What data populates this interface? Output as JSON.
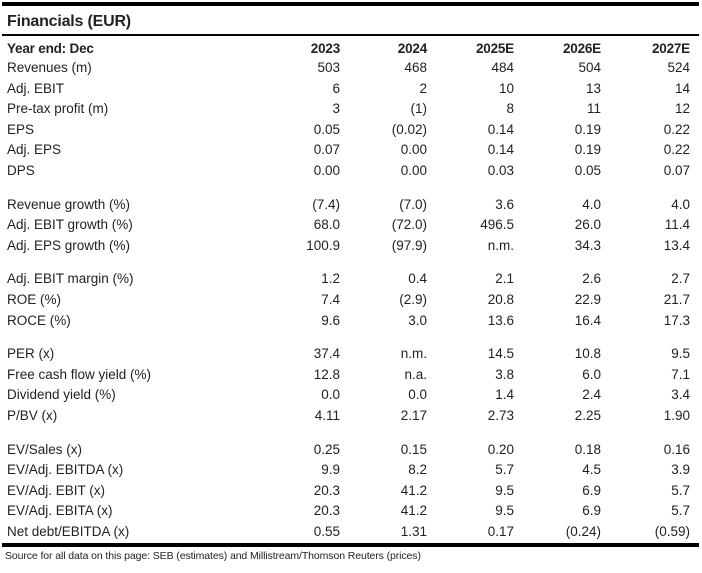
{
  "title": "Financials (EUR)",
  "table": {
    "header": {
      "label": "Year end: Dec",
      "columns": [
        "2023",
        "2024",
        "2025E",
        "2026E",
        "2027E"
      ]
    },
    "sections": [
      {
        "rows": [
          {
            "label": "Revenues (m)",
            "values": [
              "503",
              "468",
              "484",
              "504",
              "524"
            ]
          },
          {
            "label": "Adj. EBIT",
            "values": [
              "6",
              "2",
              "10",
              "13",
              "14"
            ]
          },
          {
            "label": "Pre-tax profit (m)",
            "values": [
              "3",
              "(1)",
              "8",
              "11",
              "12"
            ]
          },
          {
            "label": "EPS",
            "values": [
              "0.05",
              "(0.02)",
              "0.14",
              "0.19",
              "0.22"
            ]
          },
          {
            "label": "Adj. EPS",
            "values": [
              "0.07",
              "0.00",
              "0.14",
              "0.19",
              "0.22"
            ]
          },
          {
            "label": "DPS",
            "values": [
              "0.00",
              "0.00",
              "0.03",
              "0.05",
              "0.07"
            ]
          }
        ]
      },
      {
        "rows": [
          {
            "label": "Revenue growth (%)",
            "values": [
              "(7.4)",
              "(7.0)",
              "3.6",
              "4.0",
              "4.0"
            ]
          },
          {
            "label": "Adj. EBIT growth (%)",
            "values": [
              "68.0",
              "(72.0)",
              "496.5",
              "26.0",
              "11.4"
            ]
          },
          {
            "label": "Adj. EPS growth (%)",
            "values": [
              "100.9",
              "(97.9)",
              "n.m.",
              "34.3",
              "13.4"
            ]
          }
        ]
      },
      {
        "rows": [
          {
            "label": "Adj. EBIT margin (%)",
            "values": [
              "1.2",
              "0.4",
              "2.1",
              "2.6",
              "2.7"
            ]
          },
          {
            "label": "ROE (%)",
            "values": [
              "7.4",
              "(2.9)",
              "20.8",
              "22.9",
              "21.7"
            ]
          },
          {
            "label": "ROCE (%)",
            "values": [
              "9.6",
              "3.0",
              "13.6",
              "16.4",
              "17.3"
            ]
          }
        ]
      },
      {
        "rows": [
          {
            "label": "PER (x)",
            "values": [
              "37.4",
              "n.m.",
              "14.5",
              "10.8",
              "9.5"
            ]
          },
          {
            "label": "Free cash flow yield (%)",
            "values": [
              "12.8",
              "n.a.",
              "3.8",
              "6.0",
              "7.1"
            ]
          },
          {
            "label": "Dividend yield (%)",
            "values": [
              "0.0",
              "0.0",
              "1.4",
              "2.4",
              "3.4"
            ]
          },
          {
            "label": "P/BV (x)",
            "values": [
              "4.11",
              "2.17",
              "2.73",
              "2.25",
              "1.90"
            ]
          }
        ]
      },
      {
        "rows": [
          {
            "label": "EV/Sales (x)",
            "values": [
              "0.25",
              "0.15",
              "0.20",
              "0.18",
              "0.16"
            ]
          },
          {
            "label": "EV/Adj. EBITDA (x)",
            "values": [
              "9.9",
              "8.2",
              "5.7",
              "4.5",
              "3.9"
            ]
          },
          {
            "label": "EV/Adj. EBIT (x)",
            "values": [
              "20.3",
              "41.2",
              "9.5",
              "6.9",
              "5.7"
            ]
          },
          {
            "label": "EV/Adj. EBITA (x)",
            "values": [
              "20.3",
              "41.2",
              "9.5",
              "6.9",
              "5.7"
            ]
          },
          {
            "label": "Net debt/EBITDA (x)",
            "values": [
              "0.55",
              "1.31",
              "0.17",
              "(0.24)",
              "(0.59)"
            ]
          }
        ]
      }
    ]
  },
  "footer": {
    "source": "Source for all data on this page: SEB (estimates) and Millistream/Thomson Reuters (prices)"
  },
  "colors": {
    "text": "#212129",
    "rule": "#000000",
    "background": "#ffffff"
  }
}
